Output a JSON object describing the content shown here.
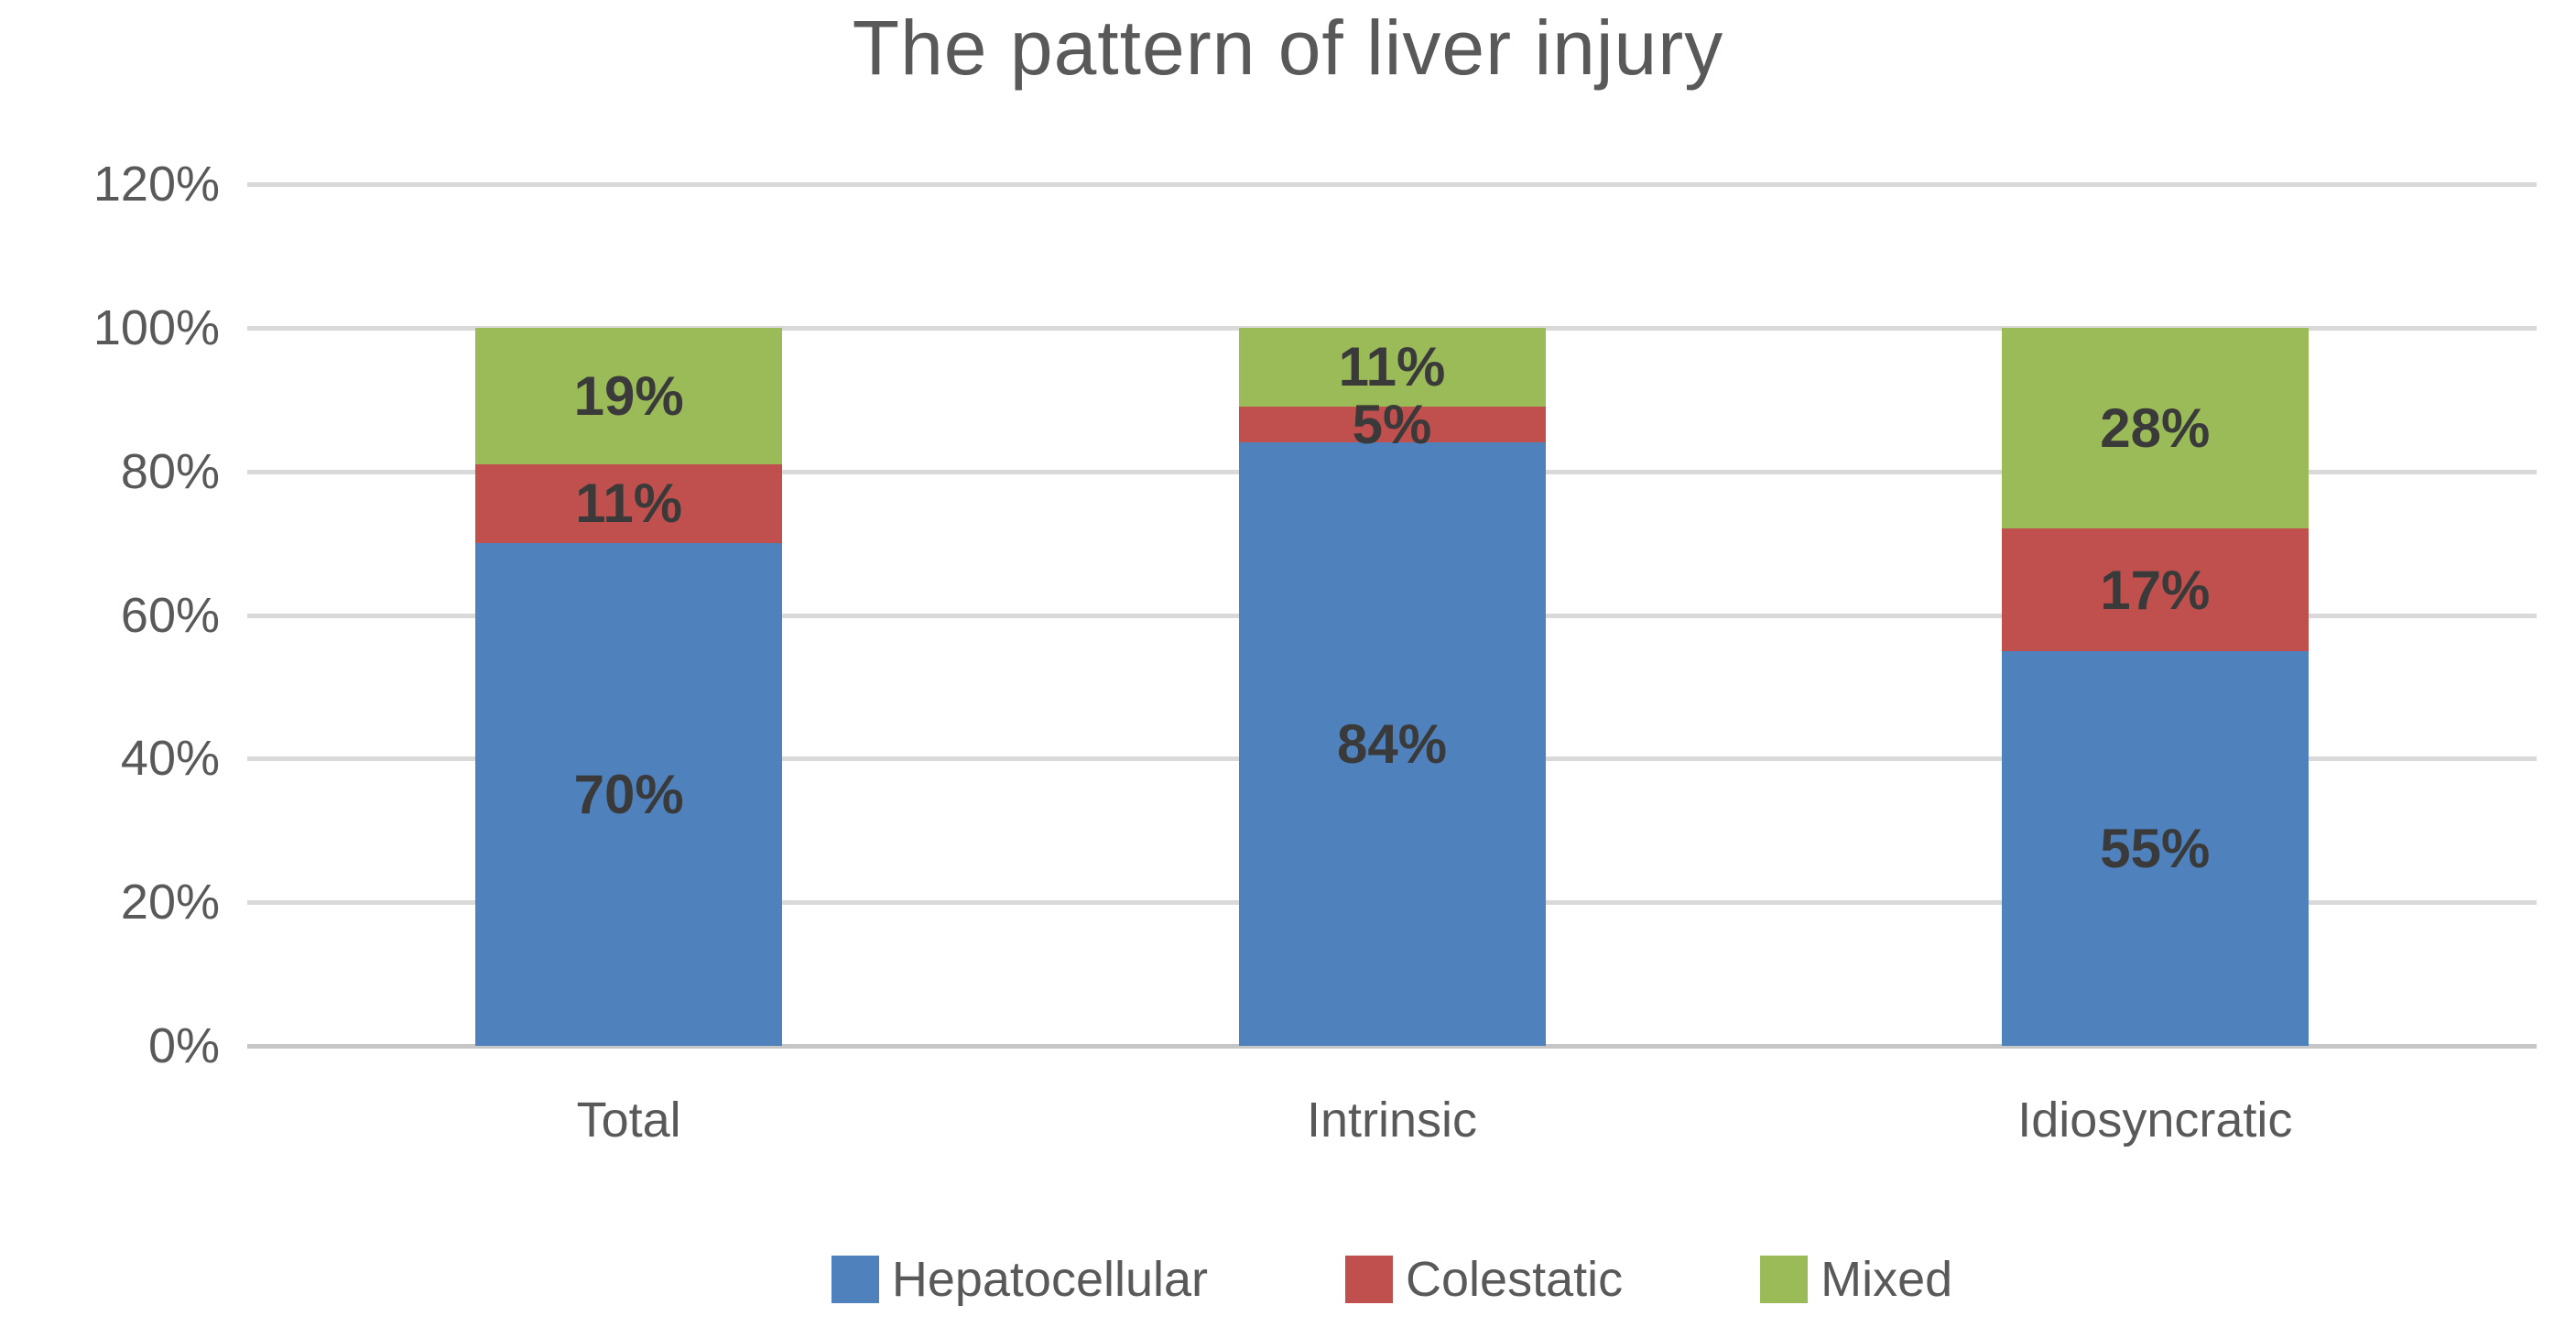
{
  "chart_data": {
    "type": "bar",
    "variant": "stacked-column",
    "title": "The pattern of liver injury",
    "categories": [
      "Total",
      "Intrinsic",
      "Idiosyncratic"
    ],
    "series": [
      {
        "name": "Hepatocellular",
        "color": "#4F81BD",
        "values": [
          70,
          84,
          55
        ]
      },
      {
        "name": "Colestatic",
        "color": "#C0504D",
        "values": [
          11,
          5,
          17
        ]
      },
      {
        "name": "Mixed",
        "color": "#9BBB59",
        "values": [
          19,
          11,
          28
        ]
      }
    ],
    "data_label_suffix": "%",
    "y_axis": {
      "min": 0,
      "max": 120,
      "ticks": [
        {
          "value": 0,
          "label": "0%"
        },
        {
          "value": 20,
          "label": "20%"
        },
        {
          "value": 40,
          "label": "40%"
        },
        {
          "value": 60,
          "label": "60%"
        },
        {
          "value": 80,
          "label": "80%"
        },
        {
          "value": 100,
          "label": "100%"
        },
        {
          "value": 120,
          "label": "120%"
        }
      ]
    },
    "grid": true,
    "legend_position": "bottom",
    "colors": {
      "title_text": "#595959",
      "axis_text": "#595959",
      "data_label_text": "#3A3A3A",
      "gridline": "#D9D9D9",
      "axis_line": "#C6C6C6",
      "background": "#FFFFFF"
    }
  }
}
